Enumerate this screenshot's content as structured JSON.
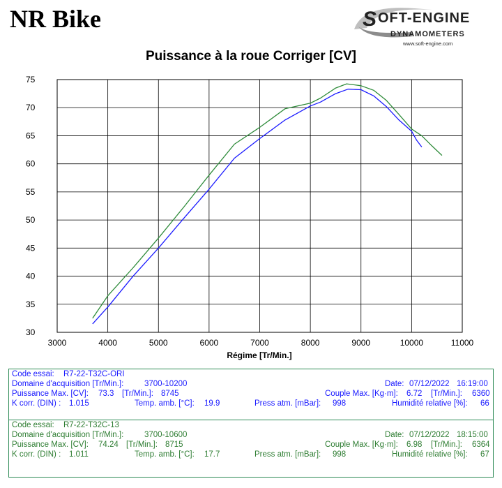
{
  "brand": "NR Bike",
  "logo": {
    "name": "SOFT-ENGINE",
    "subtitle": "DYNAMOMETERS",
    "url": "www.soft-engine.com"
  },
  "chart_data": {
    "type": "line",
    "title": "Puissance à la roue Corriger [CV]",
    "xlabel": "Régime [Tr/Min.]",
    "ylabel": "",
    "xlim": [
      3000,
      11000
    ],
    "ylim": [
      30,
      75
    ],
    "xticks": [
      3000,
      4000,
      5000,
      6000,
      7000,
      8000,
      9000,
      10000,
      11000
    ],
    "yticks": [
      30,
      35,
      40,
      45,
      50,
      55,
      60,
      65,
      70,
      75
    ],
    "grid": true,
    "series": [
      {
        "color": "#1a1aff",
        "x": [
          3700,
          4000,
          4500,
          5000,
          5500,
          6000,
          6500,
          7000,
          7500,
          8000,
          8200,
          8500,
          8745,
          9000,
          9250,
          9500,
          9750,
          10000,
          10100,
          10200
        ],
        "y": [
          31.5,
          34.5,
          40.0,
          45.0,
          50.3,
          55.5,
          61.0,
          64.5,
          67.8,
          70.3,
          71.0,
          72.5,
          73.3,
          73.2,
          72.1,
          70.2,
          67.8,
          65.8,
          64.2,
          63.0
        ]
      },
      {
        "color": "#2e8b3a",
        "x": [
          3700,
          4000,
          4500,
          5000,
          5500,
          6000,
          6500,
          7000,
          7500,
          8000,
          8200,
          8500,
          8715,
          9000,
          9250,
          9500,
          9750,
          10000,
          10200,
          10400,
          10600
        ],
        "y": [
          32.5,
          36.5,
          41.5,
          46.8,
          52.3,
          58.0,
          63.5,
          66.5,
          69.8,
          70.8,
          71.7,
          73.5,
          74.24,
          73.9,
          73.1,
          71.3,
          68.8,
          66.2,
          65.0,
          63.2,
          61.5
        ]
      }
    ]
  },
  "runs": [
    {
      "code_label": "Code essai:",
      "code": "R7-22-T32C-ORI",
      "domain_label": "Domaine d'acquisition [Tr/Min.]:",
      "domain": "3700-10200",
      "date_label": "Date:",
      "date": "07/12/2022",
      "time": "16:19:00",
      "pmax_label": "Puissance Max. [CV]:",
      "pmax": "73.3",
      "pmax_rpm_label": "[Tr/Min.]:",
      "pmax_rpm": "8745",
      "cmax_label": "Couple Max. [Kg·m]:",
      "cmax": "6.72",
      "cmax_rpm_label": "[Tr/Min.]:",
      "cmax_rpm": "6360",
      "kcorr_label": "K corr. (DIN) :",
      "kcorr": "1.015",
      "temp_label": "Temp. amb. [°C]:",
      "temp": "19.9",
      "press_label": "Press atm. [mBar]:",
      "press": "998",
      "hum_label": "Humidité relative [%]:",
      "hum": "66"
    },
    {
      "code_label": "Code essai:",
      "code": "R7-22-T32C-13",
      "domain_label": "Domaine d'acquisition [Tr/Min.]:",
      "domain": "3700-10600",
      "date_label": "Date:",
      "date": "07/12/2022",
      "time": "18:15:00",
      "pmax_label": "Puissance Max. [CV]:",
      "pmax": "74.24",
      "pmax_rpm_label": "[Tr/Min.]:",
      "pmax_rpm": "8715",
      "cmax_label": "Couple Max. [Kg·m]:",
      "cmax": "6.98",
      "cmax_rpm_label": "[Tr/Min.]:",
      "cmax_rpm": "6364",
      "kcorr_label": "K corr. (DIN) :",
      "kcorr": "1.011",
      "temp_label": "Temp. amb. [°C]:",
      "temp": "17.7",
      "press_label": "Press atm. [mBar]:",
      "press": "998",
      "hum_label": "Humidité relative [%]:",
      "hum": "67"
    }
  ]
}
